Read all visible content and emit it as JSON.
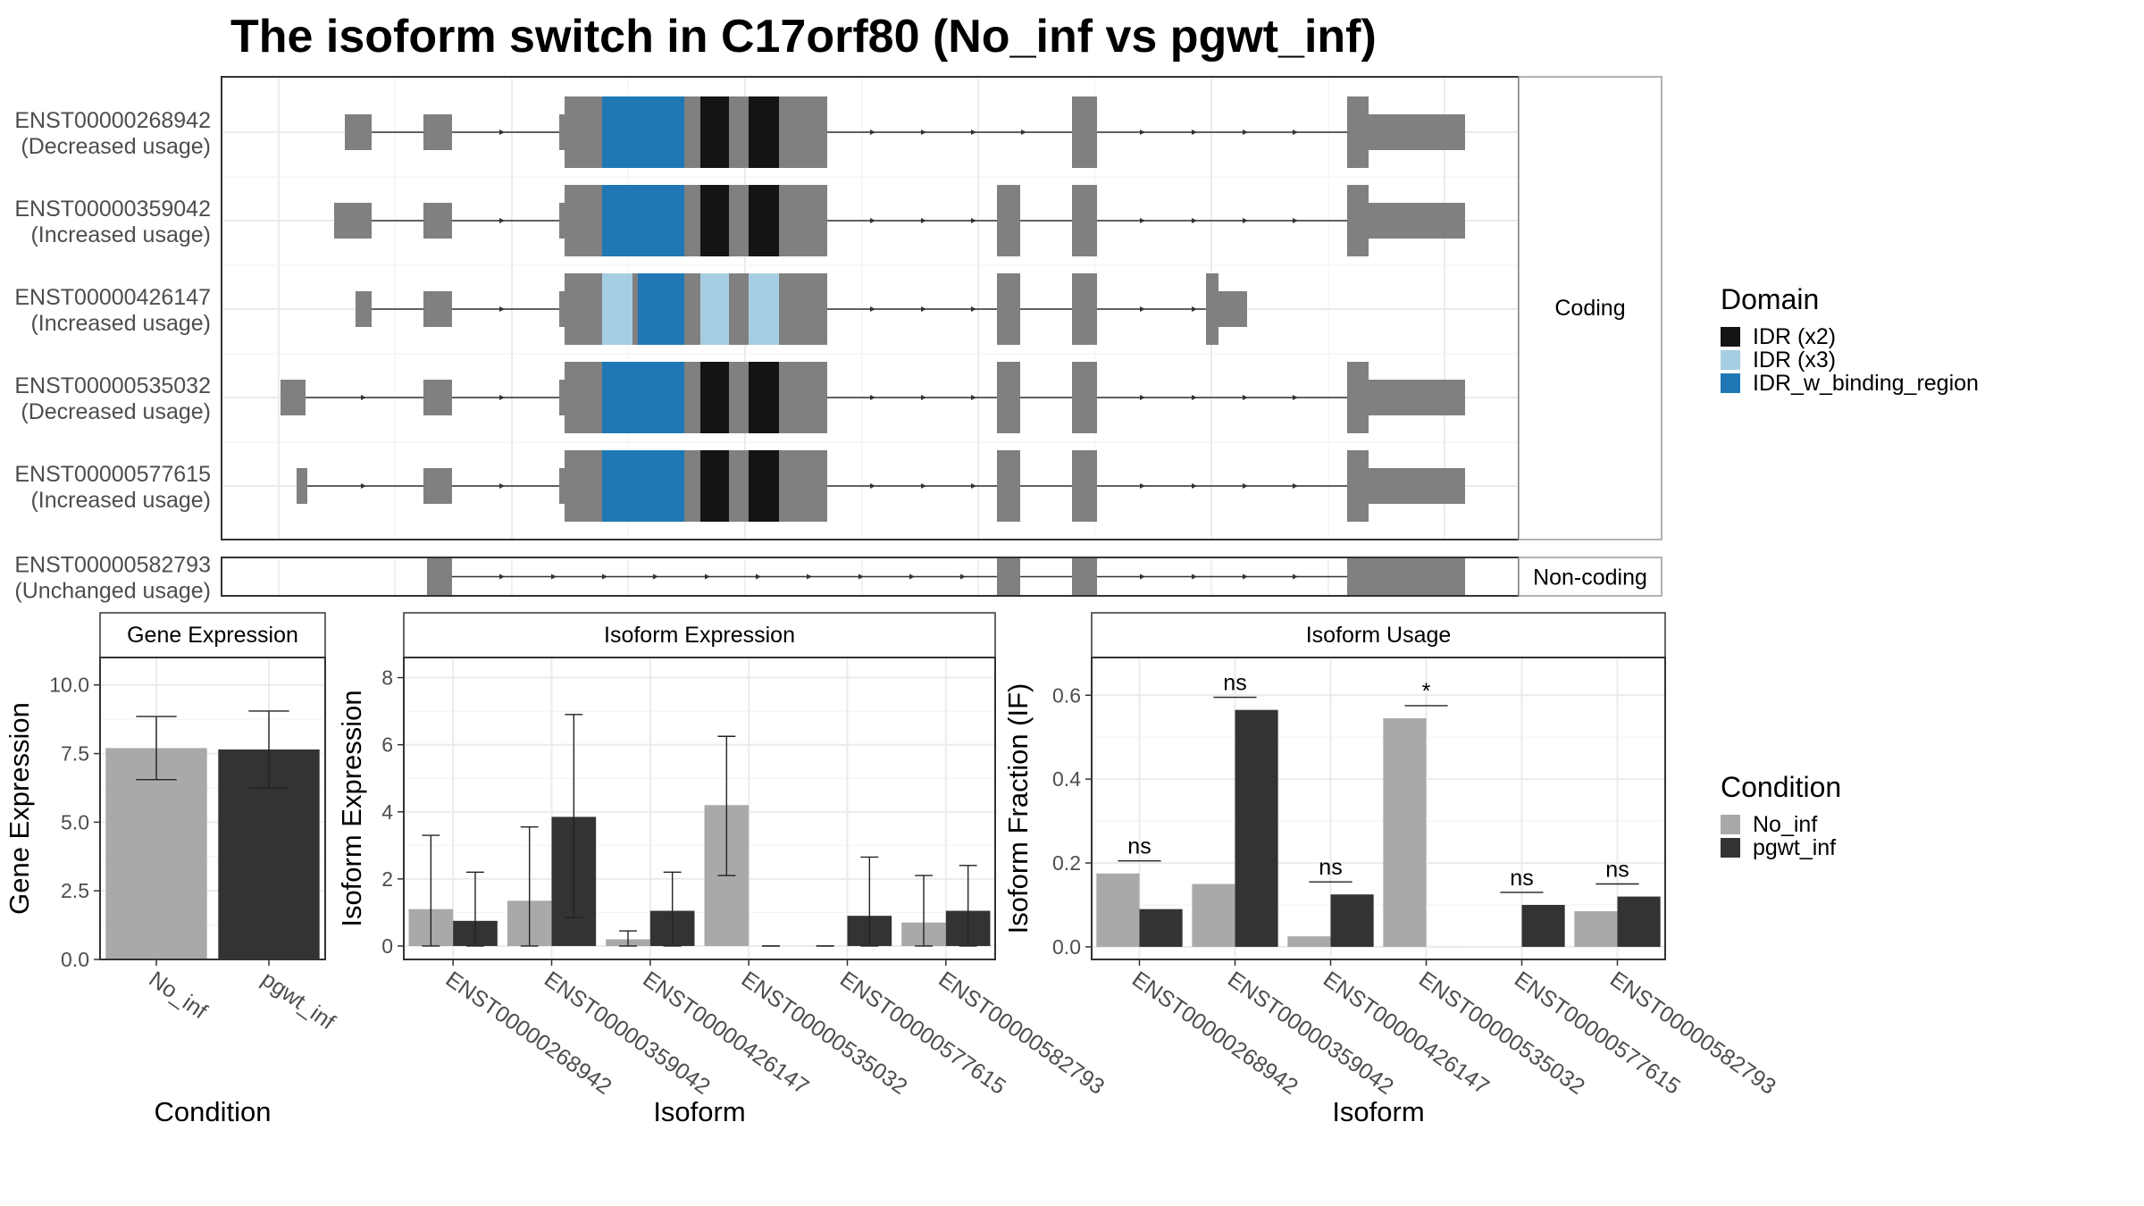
{
  "title": "The isoform switch in C17orf80 (No_inf vs pgwt_inf)",
  "colors": {
    "exon": "#808080",
    "idr_x2": "#141414",
    "idr_x3": "#a6cee3",
    "idr_binding": "#1f78b4",
    "no_inf": "#a9a9a9",
    "pgwt_inf": "#333333"
  },
  "transcript_panel": {
    "facets": [
      "Coding",
      "Non-coding"
    ],
    "coding": [
      {
        "id": "ENST00000268942",
        "usage": "(Decreased usage)"
      },
      {
        "id": "ENST00000359042",
        "usage": "(Increased usage)"
      },
      {
        "id": "ENST00000426147",
        "usage": "(Increased usage)"
      },
      {
        "id": "ENST00000535032",
        "usage": "(Decreased usage)"
      },
      {
        "id": "ENST00000577615",
        "usage": "(Increased usage)"
      }
    ],
    "noncoding": [
      {
        "id": "ENST00000582793",
        "usage": "(Unchanged usage)"
      }
    ]
  },
  "domain_legend": {
    "title": "Domain",
    "entries": [
      {
        "label": "IDR (x2)",
        "color": "#141414"
      },
      {
        "label": "IDR (x3)",
        "color": "#a6cee3"
      },
      {
        "label": "IDR_w_binding_region",
        "color": "#1f78b4"
      }
    ]
  },
  "condition_legend": {
    "title": "Condition",
    "entries": [
      {
        "label": "No_inf",
        "color": "#a9a9a9"
      },
      {
        "label": "pgwt_inf",
        "color": "#333333"
      }
    ]
  },
  "chart_data": [
    {
      "type": "bar",
      "title": "Gene Expression",
      "xlabel": "Condition",
      "ylabel": "Gene Expression",
      "categories": [
        "No_inf",
        "pgwt_inf"
      ],
      "values": [
        7.7,
        7.65
      ],
      "error_low": [
        6.55,
        6.25
      ],
      "error_high": [
        8.85,
        9.05
      ],
      "ylim": [
        0,
        11
      ],
      "yticks": [
        "0.0",
        "2.5",
        "5.0",
        "7.5",
        "10.0"
      ],
      "ytick_values": [
        0,
        2.5,
        5,
        7.5,
        10
      ],
      "grid": true
    },
    {
      "type": "bar",
      "title": "Isoform Expression",
      "xlabel": "Isoform",
      "ylabel": "Isoform Expression",
      "categories": [
        "ENST00000268942",
        "ENST00000359042",
        "ENST00000426147",
        "ENST00000535032",
        "ENST00000577615",
        "ENST00000582793"
      ],
      "series": [
        {
          "name": "No_inf",
          "values": [
            1.1,
            1.35,
            0.2,
            4.2,
            0.0,
            0.7
          ],
          "error_low": [
            0,
            0,
            0,
            2.1,
            0,
            0
          ],
          "error_high": [
            3.3,
            3.55,
            0.45,
            6.25,
            0,
            2.1
          ]
        },
        {
          "name": "pgwt_inf",
          "values": [
            0.75,
            3.85,
            1.05,
            0.0,
            0.9,
            1.05
          ],
          "error_low": [
            0,
            0.85,
            0,
            0,
            0,
            0
          ],
          "error_high": [
            2.2,
            6.9,
            2.2,
            0,
            2.65,
            2.4
          ]
        }
      ],
      "ylim": [
        -0.4,
        8.6
      ],
      "yticks": [
        "0",
        "2",
        "4",
        "6",
        "8"
      ],
      "ytick_values": [
        0,
        2,
        4,
        6,
        8
      ],
      "grid": true
    },
    {
      "type": "bar",
      "title": "Isoform Usage",
      "xlabel": "Isoform",
      "ylabel": "Isoform Fraction (IF)",
      "categories": [
        "ENST00000268942",
        "ENST00000359042",
        "ENST00000426147",
        "ENST00000535032",
        "ENST00000577615",
        "ENST00000582793"
      ],
      "series": [
        {
          "name": "No_inf",
          "values": [
            0.175,
            0.15,
            0.025,
            0.545,
            0.0,
            0.085
          ]
        },
        {
          "name": "pgwt_inf",
          "values": [
            0.09,
            0.565,
            0.125,
            0.0,
            0.1,
            0.12
          ]
        }
      ],
      "significance": [
        "ns",
        "ns",
        "ns",
        "*",
        "ns",
        "ns"
      ],
      "sig_level": [
        0.205,
        0.595,
        0.155,
        0.575,
        0.13,
        0.15
      ],
      "ylim": [
        -0.03,
        0.69
      ],
      "yticks": [
        "0.0",
        "0.2",
        "0.4",
        "0.6"
      ],
      "ytick_values": [
        0,
        0.2,
        0.4,
        0.6
      ],
      "grid": true
    }
  ]
}
